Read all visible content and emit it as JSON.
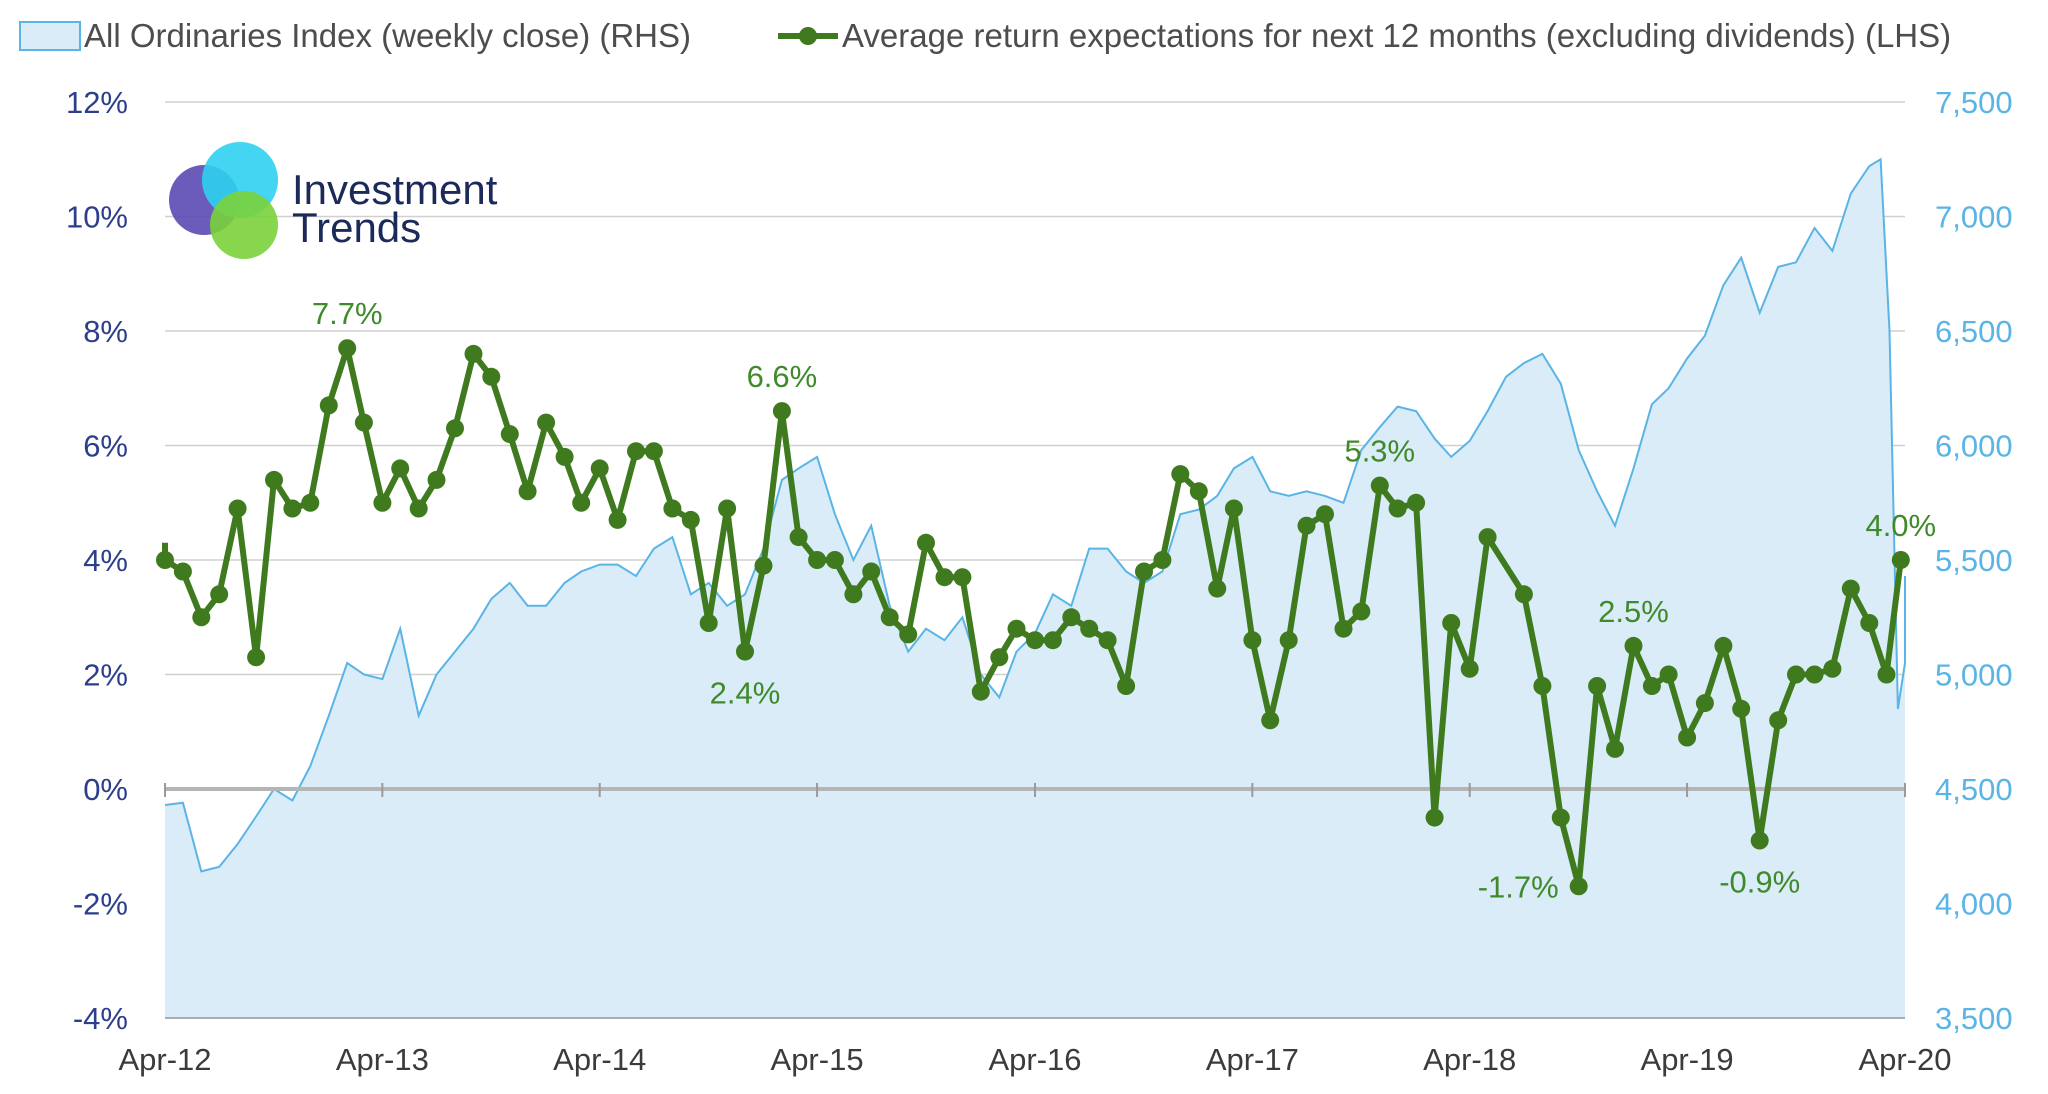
{
  "chart_data": {
    "type": "line",
    "legend": {
      "placement": "top",
      "entries": [
        {
          "name": "All Ordinaries Index (weekly close) (RHS)",
          "style": "area",
          "color": "#5ab4e5",
          "fill": "#d9ecf8"
        },
        {
          "name": "Average return expectations for next 12 months (excluding dividends) (LHS)",
          "style": "line-marker",
          "color": "#3f7a1f"
        }
      ]
    },
    "logo": {
      "line1": "Investment",
      "line2": "Trends"
    },
    "x_axis": {
      "start": "2012-04",
      "end": "2020-04",
      "ticks": [
        {
          "date": "2012-04",
          "label": "Apr-12"
        },
        {
          "date": "2013-04",
          "label": "Apr-13"
        },
        {
          "date": "2014-04",
          "label": "Apr-14"
        },
        {
          "date": "2015-04",
          "label": "Apr-15"
        },
        {
          "date": "2016-04",
          "label": "Apr-16"
        },
        {
          "date": "2017-04",
          "label": "Apr-17"
        },
        {
          "date": "2018-04",
          "label": "Apr-18"
        },
        {
          "date": "2019-04",
          "label": "Apr-19"
        },
        {
          "date": "2020-04",
          "label": "Apr-20"
        }
      ]
    },
    "y_left": {
      "range": [
        -4,
        12
      ],
      "ticks": [
        -4,
        -2,
        0,
        2,
        4,
        6,
        8,
        10,
        12
      ],
      "tick_labels": [
        "-4%",
        "-2%",
        "0%",
        "2%",
        "4%",
        "6%",
        "8%",
        "10%",
        "12%"
      ],
      "unit": "%"
    },
    "y_right": {
      "range": [
        3500,
        7500
      ],
      "ticks": [
        3500,
        4000,
        4500,
        5000,
        5500,
        6000,
        6500,
        7000,
        7500
      ],
      "tick_labels": [
        "3,500",
        "4,000",
        "4,500",
        "5,000",
        "5,500",
        "6,000",
        "6,500",
        "7,000",
        "7,500"
      ]
    },
    "grid": "horizontal",
    "series": [
      {
        "name": "All Ordinaries Index (weekly close) (RHS)",
        "axis": "right",
        "type": "area",
        "points": [
          [
            "2012-04-01",
            4430
          ],
          [
            "2012-05-01",
            4440
          ],
          [
            "2012-06-01",
            4140
          ],
          [
            "2012-07-01",
            4160
          ],
          [
            "2012-08-01",
            4260
          ],
          [
            "2012-09-01",
            4380
          ],
          [
            "2012-10-01",
            4500
          ],
          [
            "2012-11-01",
            4450
          ],
          [
            "2012-12-01",
            4600
          ],
          [
            "2013-01-01",
            4820
          ],
          [
            "2013-02-01",
            5050
          ],
          [
            "2013-03-01",
            5000
          ],
          [
            "2013-04-01",
            4980
          ],
          [
            "2013-05-01",
            5200
          ],
          [
            "2013-06-01",
            4820
          ],
          [
            "2013-07-01",
            5000
          ],
          [
            "2013-08-01",
            5100
          ],
          [
            "2013-09-01",
            5200
          ],
          [
            "2013-10-01",
            5330
          ],
          [
            "2013-11-01",
            5400
          ],
          [
            "2013-12-01",
            5300
          ],
          [
            "2014-01-01",
            5300
          ],
          [
            "2014-02-01",
            5400
          ],
          [
            "2014-03-01",
            5450
          ],
          [
            "2014-04-01",
            5480
          ],
          [
            "2014-05-01",
            5480
          ],
          [
            "2014-06-01",
            5430
          ],
          [
            "2014-07-01",
            5550
          ],
          [
            "2014-08-01",
            5600
          ],
          [
            "2014-09-01",
            5350
          ],
          [
            "2014-10-01",
            5400
          ],
          [
            "2014-11-01",
            5300
          ],
          [
            "2014-12-01",
            5350
          ],
          [
            "2015-01-01",
            5550
          ],
          [
            "2015-02-01",
            5850
          ],
          [
            "2015-03-01",
            5900
          ],
          [
            "2015-04-01",
            5950
          ],
          [
            "2015-05-01",
            5700
          ],
          [
            "2015-06-01",
            5500
          ],
          [
            "2015-07-01",
            5650
          ],
          [
            "2015-08-01",
            5300
          ],
          [
            "2015-09-01",
            5100
          ],
          [
            "2015-10-01",
            5200
          ],
          [
            "2015-11-01",
            5150
          ],
          [
            "2015-12-01",
            5250
          ],
          [
            "2016-01-01",
            5000
          ],
          [
            "2016-02-01",
            4900
          ],
          [
            "2016-03-01",
            5100
          ],
          [
            "2016-04-01",
            5180
          ],
          [
            "2016-05-01",
            5350
          ],
          [
            "2016-06-01",
            5300
          ],
          [
            "2016-07-01",
            5550
          ],
          [
            "2016-08-01",
            5550
          ],
          [
            "2016-09-01",
            5450
          ],
          [
            "2016-10-01",
            5400
          ],
          [
            "2016-11-01",
            5450
          ],
          [
            "2016-12-01",
            5700
          ],
          [
            "2017-01-01",
            5720
          ],
          [
            "2017-02-01",
            5780
          ],
          [
            "2017-03-01",
            5900
          ],
          [
            "2017-04-01",
            5950
          ],
          [
            "2017-05-01",
            5800
          ],
          [
            "2017-06-01",
            5780
          ],
          [
            "2017-07-01",
            5800
          ],
          [
            "2017-08-01",
            5780
          ],
          [
            "2017-09-01",
            5750
          ],
          [
            "2017-10-01",
            5980
          ],
          [
            "2017-11-01",
            6080
          ],
          [
            "2017-12-01",
            6170
          ],
          [
            "2018-01-01",
            6150
          ],
          [
            "2018-02-01",
            6030
          ],
          [
            "2018-03-01",
            5950
          ],
          [
            "2018-04-01",
            6020
          ],
          [
            "2018-05-01",
            6150
          ],
          [
            "2018-06-01",
            6300
          ],
          [
            "2018-07-01",
            6360
          ],
          [
            "2018-08-01",
            6400
          ],
          [
            "2018-09-01",
            6270
          ],
          [
            "2018-10-01",
            5980
          ],
          [
            "2018-11-01",
            5800
          ],
          [
            "2018-12-01",
            5650
          ],
          [
            "2019-01-01",
            5900
          ],
          [
            "2019-02-01",
            6180
          ],
          [
            "2019-03-01",
            6250
          ],
          [
            "2019-04-01",
            6380
          ],
          [
            "2019-05-01",
            6480
          ],
          [
            "2019-06-01",
            6700
          ],
          [
            "2019-07-01",
            6820
          ],
          [
            "2019-08-01",
            6580
          ],
          [
            "2019-09-01",
            6780
          ],
          [
            "2019-10-01",
            6800
          ],
          [
            "2019-11-01",
            6950
          ],
          [
            "2019-12-01",
            6850
          ],
          [
            "2020-01-01",
            7100
          ],
          [
            "2020-02-01",
            7220
          ],
          [
            "2020-02-20",
            7250
          ],
          [
            "2020-03-06",
            6500
          ],
          [
            "2020-03-20",
            4850
          ],
          [
            "2020-04-03",
            5050
          ],
          [
            "2020-04-17",
            5430
          ]
        ]
      },
      {
        "name": "Average return expectations for next 12 months (excluding dividends) (LHS)",
        "axis": "left",
        "type": "line-marker",
        "points": [
          [
            "2012-03-25",
            4.3
          ],
          [
            "2012-04-01",
            4.0
          ],
          [
            "2012-05-01",
            3.8
          ],
          [
            "2012-06-01",
            3.0
          ],
          [
            "2012-07-01",
            3.4
          ],
          [
            "2012-08-01",
            4.9
          ],
          [
            "2012-09-01",
            2.3
          ],
          [
            "2012-10-01",
            5.4
          ],
          [
            "2012-11-01",
            4.9
          ],
          [
            "2012-12-01",
            5.0
          ],
          [
            "2013-01-01",
            6.7
          ],
          [
            "2013-02-01",
            7.7
          ],
          [
            "2013-03-01",
            6.4
          ],
          [
            "2013-04-01",
            5.0
          ],
          [
            "2013-05-01",
            5.6
          ],
          [
            "2013-06-01",
            4.9
          ],
          [
            "2013-07-01",
            5.4
          ],
          [
            "2013-08-01",
            6.3
          ],
          [
            "2013-09-01",
            7.6
          ],
          [
            "2013-10-01",
            7.2
          ],
          [
            "2013-11-01",
            6.2
          ],
          [
            "2013-12-01",
            5.2
          ],
          [
            "2014-01-01",
            6.4
          ],
          [
            "2014-02-01",
            5.8
          ],
          [
            "2014-03-01",
            5.0
          ],
          [
            "2014-04-01",
            5.6
          ],
          [
            "2014-05-01",
            4.7
          ],
          [
            "2014-06-01",
            5.9
          ],
          [
            "2014-07-01",
            5.9
          ],
          [
            "2014-08-01",
            4.9
          ],
          [
            "2014-09-01",
            4.7
          ],
          [
            "2014-10-01",
            2.9
          ],
          [
            "2014-11-01",
            4.9
          ],
          [
            "2014-12-01",
            2.4
          ],
          [
            "2015-01-01",
            3.9
          ],
          [
            "2015-02-01",
            6.6
          ],
          [
            "2015-03-01",
            4.4
          ],
          [
            "2015-04-01",
            4.0
          ],
          [
            "2015-05-01",
            4.0
          ],
          [
            "2015-06-01",
            3.4
          ],
          [
            "2015-07-01",
            3.8
          ],
          [
            "2015-08-01",
            3.0
          ],
          [
            "2015-09-01",
            2.7
          ],
          [
            "2015-10-01",
            4.3
          ],
          [
            "2015-11-01",
            3.7
          ],
          [
            "2015-12-01",
            3.7
          ],
          [
            "2016-01-01",
            1.7
          ],
          [
            "2016-02-01",
            2.3
          ],
          [
            "2016-03-01",
            2.8
          ],
          [
            "2016-04-01",
            2.6
          ],
          [
            "2016-05-01",
            2.6
          ],
          [
            "2016-06-01",
            3.0
          ],
          [
            "2016-07-01",
            2.8
          ],
          [
            "2016-08-01",
            2.6
          ],
          [
            "2016-09-01",
            1.8
          ],
          [
            "2016-10-01",
            3.8
          ],
          [
            "2016-11-01",
            4.0
          ],
          [
            "2016-12-01",
            5.5
          ],
          [
            "2017-01-01",
            5.2
          ],
          [
            "2017-02-01",
            3.5
          ],
          [
            "2017-03-01",
            4.9
          ],
          [
            "2017-04-01",
            2.6
          ],
          [
            "2017-05-01",
            1.2
          ],
          [
            "2017-06-01",
            2.6
          ],
          [
            "2017-07-01",
            4.6
          ],
          [
            "2017-08-01",
            4.8
          ],
          [
            "2017-09-01",
            2.8
          ],
          [
            "2017-10-01",
            3.1
          ],
          [
            "2017-11-01",
            5.3
          ],
          [
            "2017-12-01",
            4.9
          ],
          [
            "2018-01-01",
            5.0
          ],
          [
            "2018-02-01",
            -0.5
          ],
          [
            "2018-03-01",
            2.9
          ],
          [
            "2018-04-01",
            2.1
          ],
          [
            "2018-05-01",
            4.4
          ],
          [
            "2018-07-01",
            3.4
          ],
          [
            "2018-08-01",
            1.8
          ],
          [
            "2018-09-01",
            -0.5
          ],
          [
            "2018-10-01",
            -1.7
          ],
          [
            "2018-11-01",
            1.8
          ],
          [
            "2018-12-01",
            0.7
          ],
          [
            "2019-01-01",
            2.5
          ],
          [
            "2019-02-01",
            1.8
          ],
          [
            "2019-03-01",
            2.0
          ],
          [
            "2019-04-01",
            0.9
          ],
          [
            "2019-05-01",
            1.5
          ],
          [
            "2019-06-01",
            2.5
          ],
          [
            "2019-07-01",
            1.4
          ],
          [
            "2019-08-01",
            -0.9
          ],
          [
            "2019-09-01",
            1.2
          ],
          [
            "2019-10-01",
            2.0
          ],
          [
            "2019-11-01",
            2.0
          ],
          [
            "2019-12-01",
            2.1
          ],
          [
            "2020-01-01",
            3.5
          ],
          [
            "2020-02-01",
            2.9
          ],
          [
            "2020-03-01",
            2.0
          ],
          [
            "2020-03-25",
            4.0
          ]
        ]
      }
    ],
    "annotations": [
      {
        "text": "7.7%",
        "date": "2013-02-01",
        "value": 7.7,
        "place": "above"
      },
      {
        "text": "6.6%",
        "date": "2015-02-01",
        "value": 6.6,
        "place": "above"
      },
      {
        "text": "2.4%",
        "date": "2014-12-01",
        "value": 2.4,
        "place": "below"
      },
      {
        "text": "5.3%",
        "date": "2017-11-01",
        "value": 5.3,
        "place": "above"
      },
      {
        "text": "-1.7%",
        "date": "2018-10-01",
        "value": -1.7,
        "place": "left"
      },
      {
        "text": "2.5%",
        "date": "2019-01-01",
        "value": 2.5,
        "place": "above"
      },
      {
        "text": "-0.9%",
        "date": "2019-08-01",
        "value": -0.9,
        "place": "below"
      },
      {
        "text": "4.0%",
        "date": "2020-03-25",
        "value": 4.0,
        "place": "above"
      }
    ]
  }
}
